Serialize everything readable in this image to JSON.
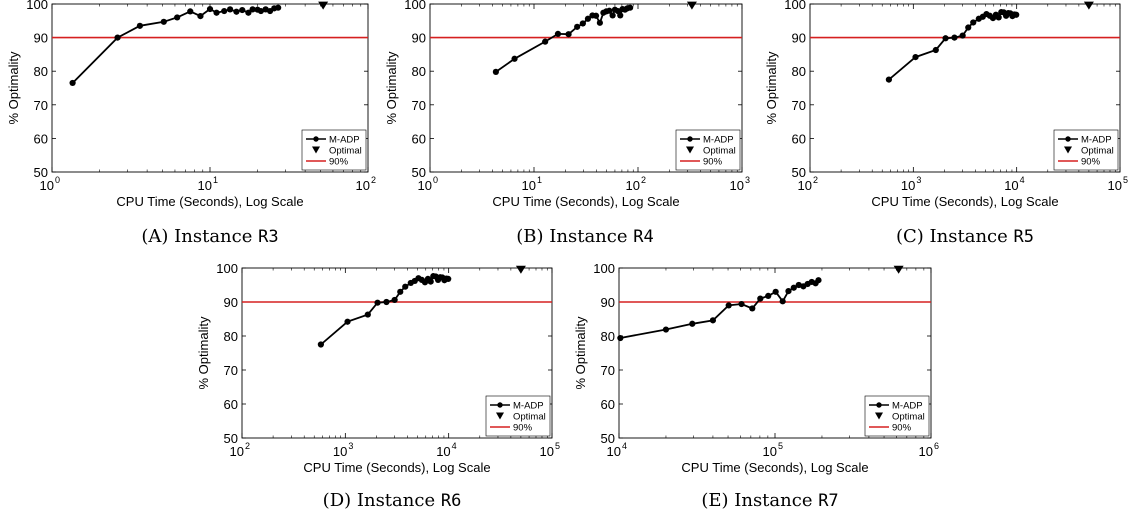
{
  "colors": {
    "line": "#000000",
    "threshold": "#d62020",
    "axis": "#000000"
  },
  "chart_data": [
    {
      "type": "line",
      "caption": {
        "prefix": "(A) Instance ",
        "instance": "R3"
      },
      "xscale": "log",
      "xlim": [
        1,
        100
      ],
      "ylim": [
        50,
        100
      ],
      "xlabel": "CPU Time (Seconds), Log Scale",
      "ylabel": "% Optimality",
      "xticks": [
        {
          "v": 1,
          "m": "10",
          "e": "0"
        },
        {
          "v": 10,
          "m": "10",
          "e": "1"
        },
        {
          "v": 100,
          "m": "10",
          "e": "2"
        }
      ],
      "yticks": [
        50,
        60,
        70,
        80,
        90,
        100
      ],
      "legend": {
        "position": "bottom-right",
        "entries": [
          "M-ADP",
          "Optimal",
          "90%"
        ]
      },
      "series": [
        {
          "name": "M-ADP",
          "x": [
            1.35,
            2.6,
            3.6,
            5.1,
            6.2,
            7.5,
            8.7,
            10,
            11,
            12.3,
            13.4,
            14.7,
            16,
            17.5,
            18.6,
            20,
            21,
            22.5,
            24,
            25.5,
            27
          ],
          "y": [
            76.5,
            90,
            93.5,
            94.7,
            96,
            97.8,
            96.4,
            98.5,
            97.4,
            97.9,
            98.4,
            97.7,
            98.2,
            97.4,
            98.4,
            98.3,
            97.9,
            98.4,
            97.9,
            98.7,
            98.9
          ]
        }
      ],
      "optimal": {
        "x": 52,
        "y": 99.5
      },
      "threshold": 90
    },
    {
      "type": "line",
      "caption": {
        "prefix": "(B) Instance ",
        "instance": "R4"
      },
      "xscale": "log",
      "xlim": [
        1,
        1000
      ],
      "ylim": [
        50,
        100
      ],
      "xlabel": "CPU Time (Seconds), Log Scale",
      "ylabel": "% Optimality",
      "xticks": [
        {
          "v": 1,
          "m": "10",
          "e": "0"
        },
        {
          "v": 10,
          "m": "10",
          "e": "1"
        },
        {
          "v": 100,
          "m": "10",
          "e": "2"
        },
        {
          "v": 1000,
          "m": "10",
          "e": "3"
        }
      ],
      "yticks": [
        50,
        60,
        70,
        80,
        90,
        100
      ],
      "legend": {
        "position": "bottom-right",
        "entries": [
          "M-ADP",
          "Optimal",
          "90%"
        ]
      },
      "series": [
        {
          "name": "M-ADP",
          "x": [
            4.3,
            6.5,
            12.8,
            17,
            21.5,
            26,
            29.5,
            33,
            36.5,
            39.5,
            43,
            46.5,
            49.5,
            53,
            57,
            60,
            64,
            67.5,
            71,
            75,
            79,
            84
          ],
          "y": [
            79.8,
            83.7,
            88.8,
            91.1,
            91,
            93.2,
            94.2,
            95.6,
            96.6,
            96.5,
            94.4,
            97.4,
            97.8,
            98,
            96.6,
            98.3,
            97.9,
            96.6,
            98.5,
            98.3,
            98.7,
            98.9
          ]
        }
      ],
      "optimal": {
        "x": 330,
        "y": 99.5
      },
      "threshold": 90
    },
    {
      "type": "line",
      "caption": {
        "prefix": "(C) Instance ",
        "instance": "R5"
      },
      "xscale": "log",
      "xlim": [
        100,
        100000
      ],
      "ylim": [
        50,
        100
      ],
      "xlabel": "CPU Time (Seconds), Log Scale",
      "ylabel": "% Optimality",
      "xticks": [
        {
          "v": 100,
          "m": "10",
          "e": "2"
        },
        {
          "v": 1000,
          "m": "10",
          "e": "3"
        },
        {
          "v": 10000,
          "m": "10",
          "e": "4"
        },
        {
          "v": 100000,
          "m": "10",
          "e": "5"
        }
      ],
      "yticks": [
        50,
        60,
        70,
        80,
        90,
        100
      ],
      "legend": {
        "position": "bottom-right",
        "entries": [
          "M-ADP",
          "Optimal",
          "90%"
        ]
      },
      "series": [
        {
          "name": "M-ADP",
          "x": [
            580,
            1050,
            1650,
            2050,
            2500,
            3000,
            3400,
            3800,
            4300,
            4700,
            5100,
            5500,
            5900,
            6300,
            6700,
            7100,
            7500,
            7900,
            8300,
            8700,
            9100,
            9500,
            9900
          ],
          "y": [
            77.5,
            84.2,
            86.3,
            89.8,
            90,
            90.6,
            93,
            94.5,
            95.6,
            96.2,
            97,
            96.5,
            95.8,
            96.8,
            96,
            97.6,
            97.5,
            96.5,
            97.3,
            97.2,
            96.4,
            96.9,
            96.8
          ]
        }
      ],
      "optimal": {
        "x": 50000,
        "y": 99.5
      },
      "threshold": 90
    },
    {
      "type": "line",
      "caption": {
        "prefix": "(D) Instance ",
        "instance": "R6"
      },
      "xscale": "log",
      "xlim": [
        100,
        100000
      ],
      "ylim": [
        50,
        100
      ],
      "xlabel": "CPU Time (Seconds), Log Scale",
      "ylabel": "% Optimality",
      "xticks": [
        {
          "v": 100,
          "m": "10",
          "e": "2"
        },
        {
          "v": 1000,
          "m": "10",
          "e": "3"
        },
        {
          "v": 10000,
          "m": "10",
          "e": "4"
        },
        {
          "v": 100000,
          "m": "10",
          "e": "5"
        }
      ],
      "yticks": [
        50,
        60,
        70,
        80,
        90,
        100
      ],
      "legend": {
        "position": "bottom-right",
        "entries": [
          "M-ADP",
          "Optimal",
          "90%"
        ]
      },
      "series": [
        {
          "name": "M-ADP",
          "x": [
            580,
            1050,
            1650,
            2050,
            2500,
            3000,
            3400,
            3800,
            4300,
            4700,
            5100,
            5500,
            5900,
            6300,
            6700,
            7100,
            7500,
            7900,
            8300,
            8700,
            9100,
            9500,
            9900
          ],
          "y": [
            77.5,
            84.2,
            86.3,
            89.8,
            90,
            90.6,
            93,
            94.5,
            95.6,
            96.2,
            97,
            96.5,
            95.8,
            96.8,
            96,
            97.6,
            97.5,
            96.5,
            97.3,
            97.2,
            96.4,
            96.9,
            96.8
          ]
        }
      ],
      "optimal": {
        "x": 50000,
        "y": 99.5
      },
      "threshold": 90
    },
    {
      "type": "line",
      "caption": {
        "prefix": "(E) Instance ",
        "instance": "R7"
      },
      "xscale": "log",
      "xlim": [
        10000,
        1000000
      ],
      "ylim": [
        50,
        100
      ],
      "xlabel": "CPU Time (Seconds), Log Scale",
      "ylabel": "% Optimality",
      "xticks": [
        {
          "v": 10000,
          "m": "10",
          "e": "4"
        },
        {
          "v": 100000,
          "m": "10",
          "e": "5"
        },
        {
          "v": 1000000,
          "m": "10",
          "e": "6"
        }
      ],
      "yticks": [
        50,
        60,
        70,
        80,
        90,
        100
      ],
      "legend": {
        "position": "bottom-right",
        "entries": [
          "M-ADP",
          "Optimal",
          "90%"
        ]
      },
      "series": [
        {
          "name": "M-ADP",
          "x": [
            10200,
            20000,
            29500,
            40000,
            50500,
            61000,
            71500,
            80500,
            90500,
            101000,
            112000,
            122000,
            132000,
            142000,
            152000,
            162000,
            172000,
            182000,
            190000
          ],
          "y": [
            79.4,
            81.9,
            83.6,
            84.6,
            89,
            89.4,
            88.1,
            91,
            91.8,
            93,
            90.2,
            93.2,
            94.2,
            95,
            94.6,
            95.3,
            95.9,
            95.5,
            96.4
          ]
        }
      ],
      "optimal": {
        "x": 620000,
        "y": 99.5
      },
      "threshold": 90
    }
  ]
}
